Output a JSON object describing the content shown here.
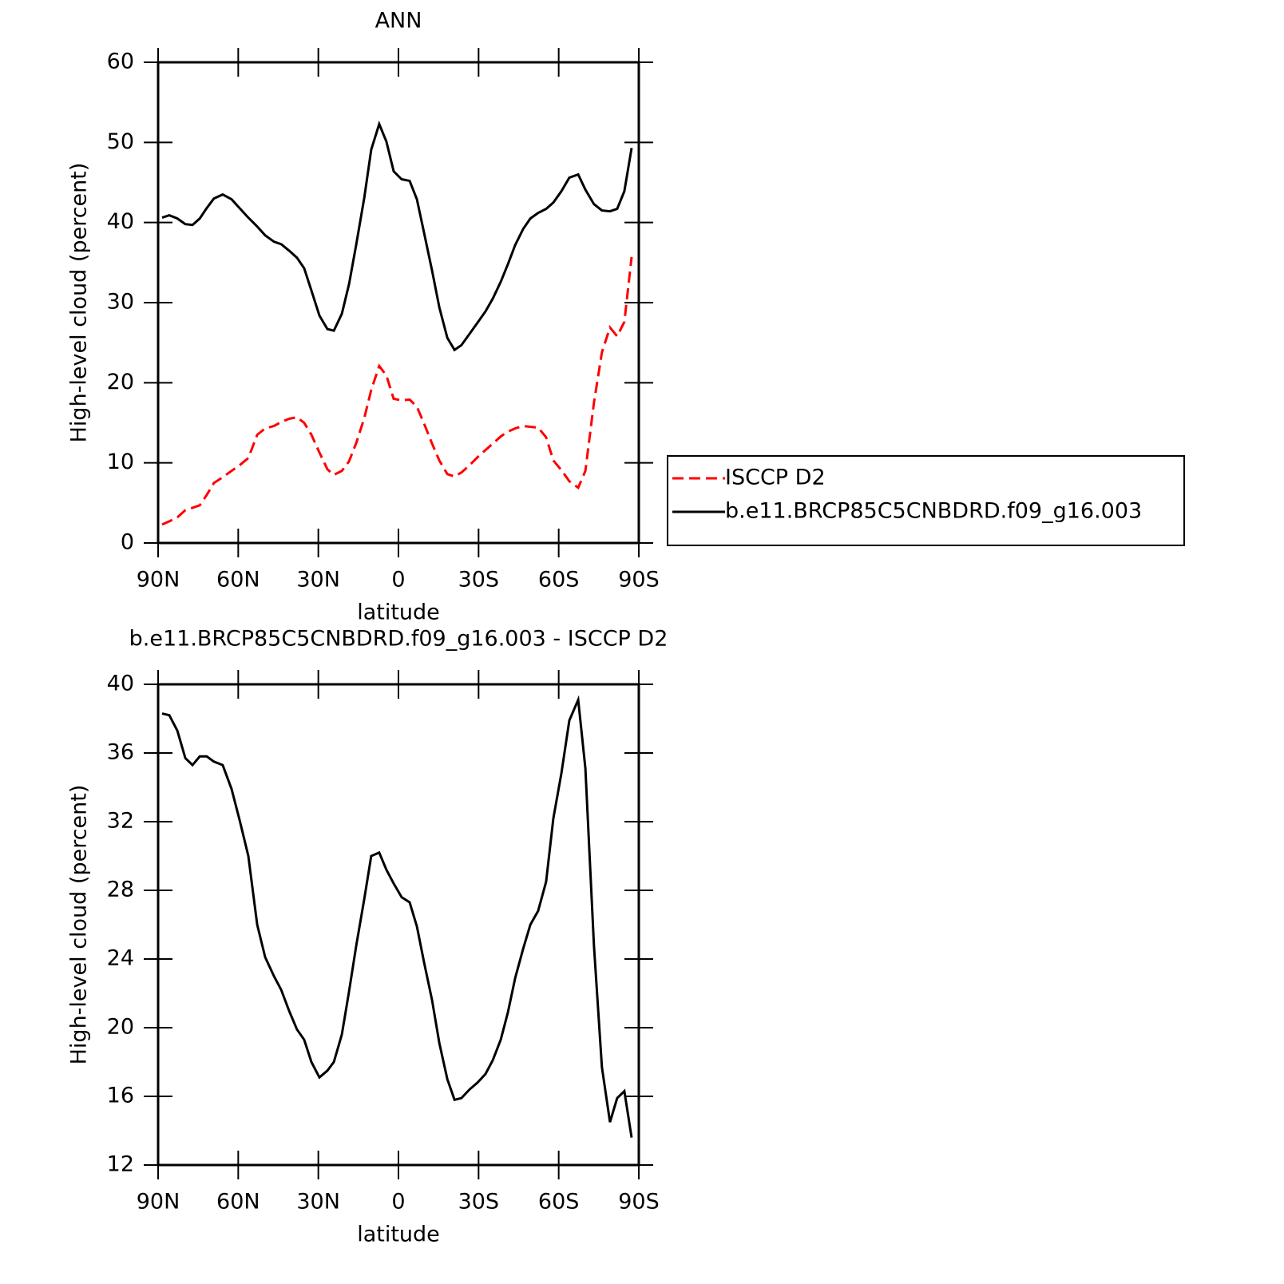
{
  "chart_data": [
    {
      "type": "line",
      "title": "ANN",
      "xlabel": "latitude",
      "ylabel": "High-level cloud (percent)",
      "x": [
        88.5,
        85.8,
        82.8,
        79.8,
        77.1,
        74.4,
        71.8,
        69.1,
        65.8,
        62.5,
        59.5,
        56.2,
        52.9,
        49.9,
        46.6,
        43.9,
        41.0,
        38.0,
        35.3,
        32.6,
        29.6,
        26.6,
        24.2,
        21.2,
        18.5,
        15.8,
        12.8,
        10.2,
        7.2,
        4.5,
        1.8,
        -1.2,
        -4.2,
        -6.9,
        -9.6,
        -12.6,
        -15.3,
        -18.3,
        -21.0,
        -23.6,
        -26.6,
        -29.6,
        -32.6,
        -35.3,
        -38.3,
        -41.0,
        -43.7,
        -46.7,
        -49.4,
        -52.3,
        -55.3,
        -58.0,
        -61.0,
        -64.0,
        -67.3,
        -70.0,
        -73.2,
        -76.2,
        -79.2,
        -81.9,
        -84.6,
        -87.3
      ],
      "series": [
        {
          "name": "ISCCP D2",
          "color": "#ff0000",
          "dash": "dashed",
          "values": [
            2.3,
            2.7,
            3.2,
            4.1,
            4.4,
            4.7,
            6.0,
            7.5,
            8.2,
            9.0,
            9.7,
            10.6,
            13.5,
            14.3,
            14.6,
            15.1,
            15.5,
            15.7,
            15.0,
            13.5,
            11.3,
            9.2,
            8.5,
            9.0,
            10.2,
            12.5,
            15.6,
            19.1,
            22.1,
            20.9,
            18.0,
            17.8,
            17.9,
            17.0,
            14.9,
            12.4,
            10.3,
            8.6,
            8.3,
            8.8,
            9.7,
            10.7,
            11.6,
            12.4,
            13.3,
            13.9,
            14.3,
            14.6,
            14.5,
            14.4,
            13.2,
            10.3,
            9.1,
            7.7,
            6.9,
            9.0,
            17.5,
            23.8,
            26.9,
            25.8,
            27.6,
            35.7
          ]
        },
        {
          "name": "b.e11.BRCP85C5CNBDRD.f09_g16.003",
          "color": "#000000",
          "dash": "solid",
          "values": [
            40.6,
            40.9,
            40.5,
            39.8,
            39.7,
            40.5,
            41.8,
            43.0,
            43.5,
            42.9,
            41.8,
            40.6,
            39.5,
            38.4,
            37.6,
            37.3,
            36.5,
            35.6,
            34.3,
            31.5,
            28.4,
            26.7,
            26.5,
            28.6,
            32.3,
            37.3,
            43.1,
            49.1,
            52.3,
            50.1,
            46.4,
            45.4,
            45.2,
            42.9,
            38.7,
            34.0,
            29.4,
            25.6,
            24.1,
            24.7,
            26.1,
            27.5,
            28.9,
            30.5,
            32.6,
            34.8,
            37.2,
            39.2,
            40.5,
            41.2,
            41.7,
            42.5,
            43.9,
            45.6,
            46.0,
            44.1,
            42.3,
            41.5,
            41.4,
            41.7,
            43.9,
            49.3
          ]
        }
      ],
      "xlim": [
        90,
        -90
      ],
      "xticks": [
        {
          "value": 90,
          "label": "90N"
        },
        {
          "value": 60,
          "label": "60N"
        },
        {
          "value": 30,
          "label": "30N"
        },
        0,
        {
          "value": -30,
          "label": "30S"
        },
        {
          "value": -60,
          "label": "60S"
        },
        {
          "value": -90,
          "label": "90S"
        }
      ],
      "ylim": [
        0,
        60
      ],
      "yticks": [
        0,
        10,
        20,
        30,
        40,
        50,
        60
      ],
      "legend": "outside-right"
    },
    {
      "type": "line",
      "title": "b.e11.BRCP85C5CNBDRD.f09_g16.003 - ISCCP D2",
      "xlabel": "latitude",
      "ylabel": "High-level cloud (percent)",
      "x": [
        88.5,
        85.8,
        82.8,
        79.8,
        77.1,
        74.4,
        71.8,
        69.1,
        65.8,
        62.5,
        59.5,
        56.2,
        52.9,
        49.9,
        46.6,
        43.9,
        41.0,
        38.0,
        35.3,
        32.6,
        29.6,
        26.6,
        24.2,
        21.2,
        18.5,
        15.8,
        12.8,
        10.2,
        7.2,
        4.5,
        1.8,
        -1.2,
        -4.2,
        -6.9,
        -9.6,
        -12.6,
        -15.3,
        -18.3,
        -21.0,
        -23.6,
        -26.6,
        -29.6,
        -32.6,
        -35.3,
        -38.3,
        -41.0,
        -43.7,
        -46.7,
        -49.4,
        -52.3,
        -55.3,
        -58.0,
        -61.0,
        -64.0,
        -67.3,
        -70.0,
        -73.2,
        -76.2,
        -79.2,
        -81.9,
        -84.6,
        -87.3
      ],
      "series": [
        {
          "color": "#000000",
          "dash": "solid",
          "values": [
            38.3,
            38.2,
            37.3,
            35.7,
            35.3,
            35.8,
            35.8,
            35.5,
            35.3,
            33.9,
            32.1,
            30.0,
            26.0,
            24.1,
            23.0,
            22.2,
            21.0,
            19.9,
            19.3,
            18.0,
            17.1,
            17.5,
            18.0,
            19.6,
            22.1,
            24.8,
            27.5,
            30.0,
            30.2,
            29.2,
            28.4,
            27.6,
            27.3,
            25.9,
            23.8,
            21.6,
            19.1,
            17.0,
            15.8,
            15.9,
            16.4,
            16.8,
            17.3,
            18.1,
            19.3,
            20.9,
            22.9,
            24.6,
            26.0,
            26.8,
            28.5,
            32.2,
            34.8,
            37.9,
            39.1,
            35.1,
            24.8,
            17.7,
            14.5,
            15.9,
            16.3,
            13.6
          ]
        }
      ],
      "xlim": [
        90,
        -90
      ],
      "xticks": [
        {
          "value": 90,
          "label": "90N"
        },
        {
          "value": 60,
          "label": "60N"
        },
        {
          "value": 30,
          "label": "30N"
        },
        0,
        {
          "value": -30,
          "label": "30S"
        },
        {
          "value": -60,
          "label": "60S"
        },
        {
          "value": -90,
          "label": "90S"
        }
      ],
      "ylim": [
        12,
        40
      ],
      "yticks": [
        12,
        16,
        20,
        24,
        28,
        32,
        36,
        40
      ]
    }
  ]
}
